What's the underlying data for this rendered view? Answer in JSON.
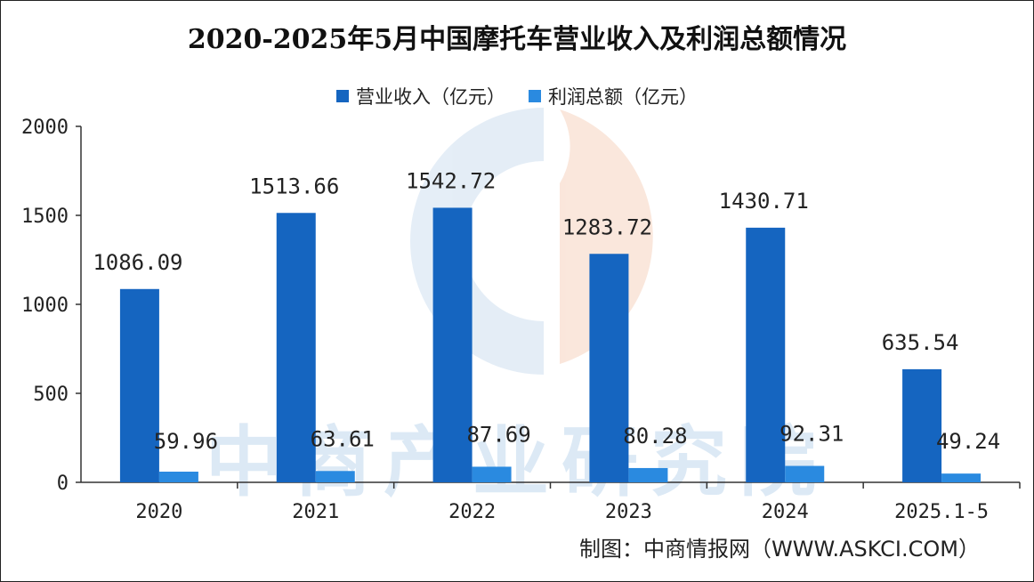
{
  "chart_data": {
    "type": "bar",
    "title": "2020-2025年5月中国摩托车营业收入及利润总额情况",
    "categories": [
      "2020",
      "2021",
      "2022",
      "2023",
      "2024",
      "2025.1-5"
    ],
    "series": [
      {
        "name": "营业收入（亿元）",
        "color": "#1565c0",
        "values": [
          1086.09,
          1513.66,
          1542.72,
          1283.72,
          1430.71,
          635.54
        ],
        "labels": [
          "1086.09",
          "1513.66",
          "1542.72",
          "1283.72",
          "1430.71",
          "635.54"
        ]
      },
      {
        "name": "利润总额（亿元）",
        "color": "#2a8ae0",
        "values": [
          59.96,
          63.61,
          87.69,
          80.28,
          92.31,
          49.24
        ],
        "labels": [
          "59.96",
          "63.61",
          "87.69",
          "80.28",
          "92.31",
          "49.24"
        ]
      }
    ],
    "ylim": [
      0,
      2000
    ],
    "yticks": [
      "0",
      "500",
      "1000",
      "1500",
      "2000"
    ],
    "xlabel": "",
    "ylabel": "",
    "grid": false,
    "legend": "top-center"
  },
  "source": "制图：中商情报网（WWW.ASKCI.COM）",
  "watermark_text": "中商产业研究院"
}
